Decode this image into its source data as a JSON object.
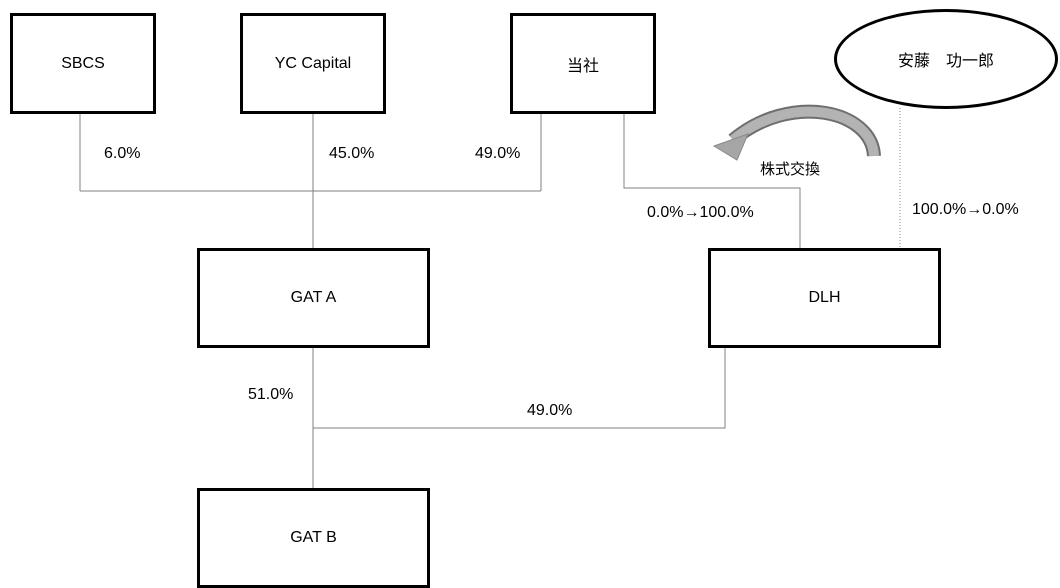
{
  "entities": {
    "sbcs": "SBCS",
    "yc_capital": "YC Capital",
    "company": "当社",
    "ando": "安藤　功一郎",
    "gat_a": "GAT A",
    "dlh": "DLH",
    "gat_b": "GAT B"
  },
  "ownership": {
    "sbcs_to_gat_a": "6.0%",
    "yc_to_gat_a": "45.0%",
    "company_to_gat_a": "49.0%",
    "company_to_dlh": "0.0%→100.0%",
    "ando_to_dlh": "100.0%→0.0%",
    "gat_a_to_gat_b": "51.0%",
    "dlh_to_gat_b": "49.0%"
  },
  "share_exchange_label": "株式交換",
  "colors": {
    "connector": "#808080",
    "border": "#000000",
    "exchange_arrow": "#9a9a9a"
  }
}
